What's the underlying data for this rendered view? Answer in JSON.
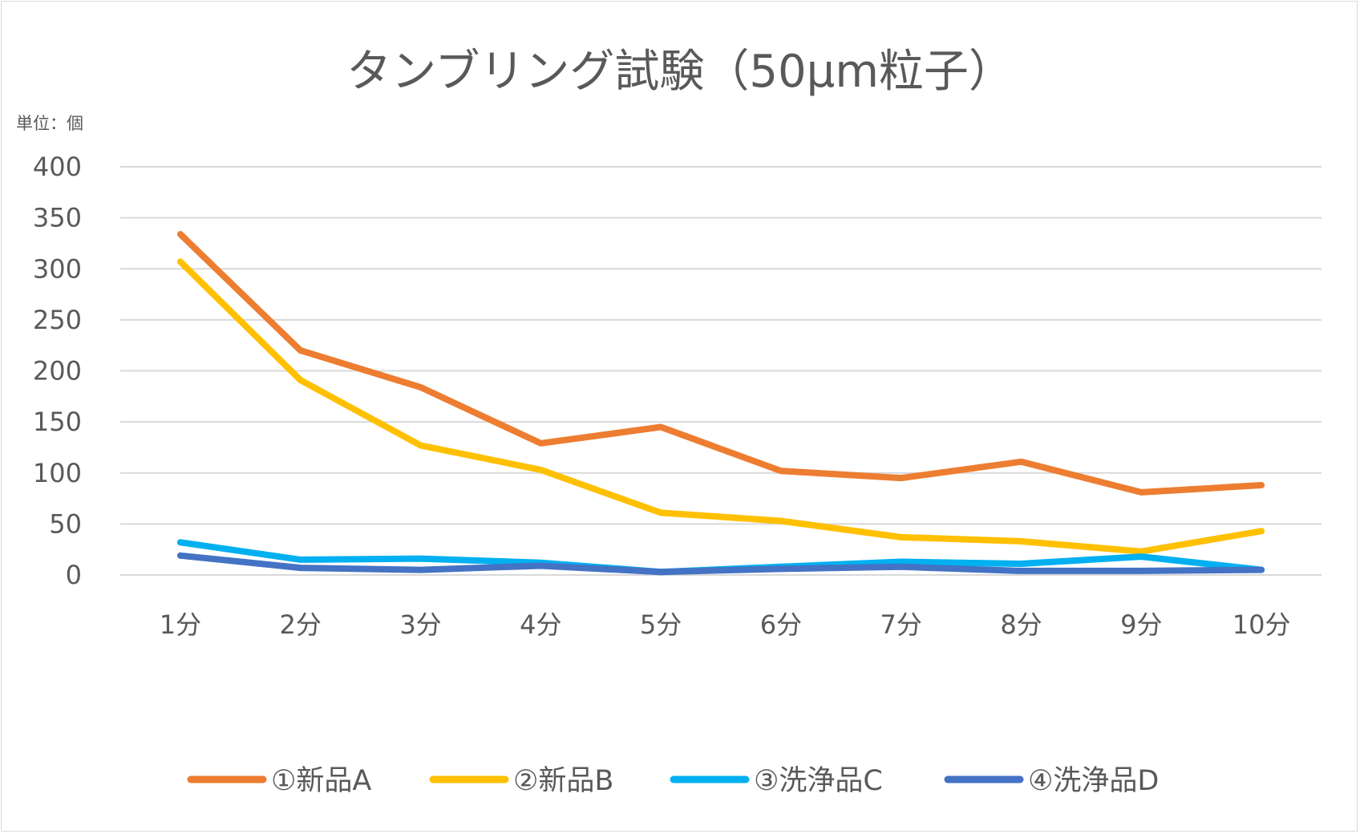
{
  "chart_data": {
    "type": "line",
    "title": "タンブリング試験（50μm粒子）",
    "unit_label": "単位：個",
    "xlabel": "",
    "ylabel": "",
    "categories": [
      "1分",
      "2分",
      "3分",
      "4分",
      "5分",
      "6分",
      "7分",
      "8分",
      "9分",
      "10分"
    ],
    "ylim": [
      0,
      400
    ],
    "yticks": [
      "0",
      "50",
      "100",
      "150",
      "200",
      "250",
      "300",
      "350",
      "400"
    ],
    "grid": true,
    "legend_position": "bottom",
    "series": [
      {
        "name": "①新品A",
        "color": "#ED7D31",
        "values": [
          334,
          220,
          184,
          129,
          145,
          102,
          95,
          111,
          81,
          88
        ]
      },
      {
        "name": "②新品B",
        "color": "#FFC000",
        "values": [
          307,
          191,
          127,
          103,
          61,
          53,
          37,
          33,
          23,
          43
        ]
      },
      {
        "name": "③洗浄品C",
        "color": "#00B0F0",
        "values": [
          32,
          15,
          16,
          12,
          3,
          8,
          13,
          11,
          18,
          5
        ]
      },
      {
        "name": "④洗浄品D",
        "color": "#4472C4",
        "values": [
          19,
          7,
          5,
          9,
          3,
          6,
          8,
          4,
          4,
          5
        ]
      }
    ]
  }
}
